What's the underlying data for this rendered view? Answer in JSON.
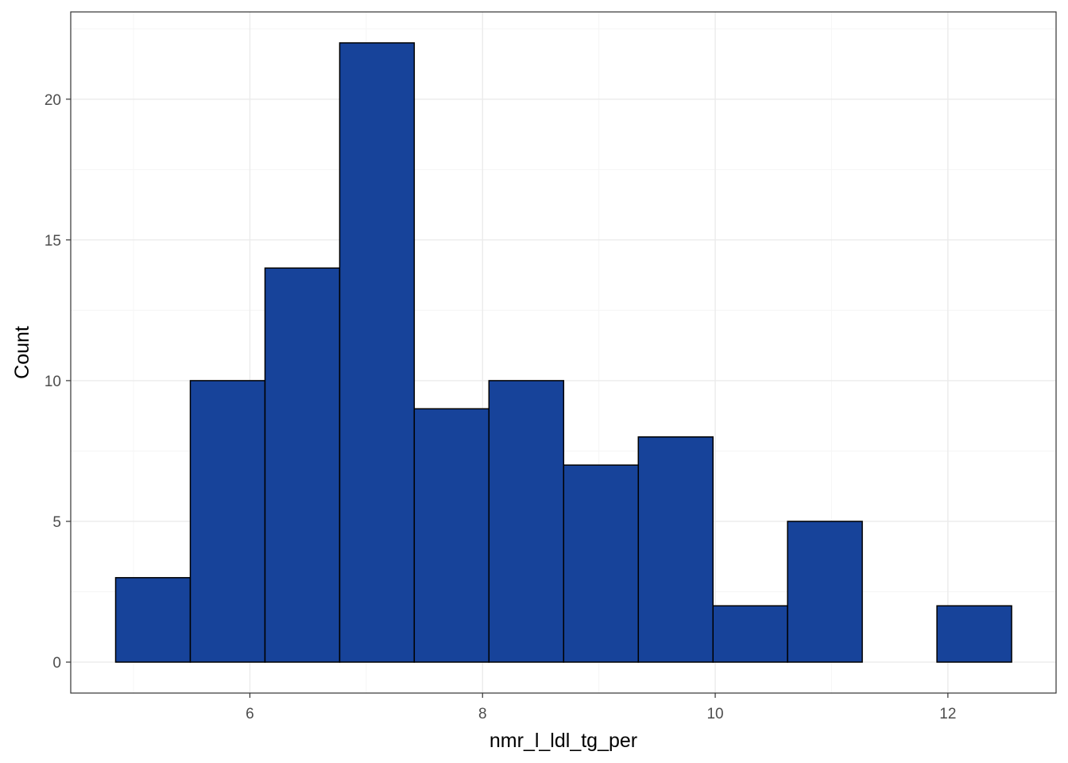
{
  "chart_data": {
    "type": "bar",
    "subtype": "histogram",
    "title": "",
    "xlabel": "nmr_l_ldl_tg_per",
    "ylabel": "Count",
    "bins": [
      {
        "x0": 4.846,
        "x1": 5.488,
        "count": 3
      },
      {
        "x0": 5.488,
        "x1": 6.13,
        "count": 10
      },
      {
        "x0": 6.13,
        "x1": 6.772,
        "count": 14
      },
      {
        "x0": 6.772,
        "x1": 7.413,
        "count": 22
      },
      {
        "x0": 7.413,
        "x1": 8.055,
        "count": 9
      },
      {
        "x0": 8.055,
        "x1": 8.697,
        "count": 10
      },
      {
        "x0": 8.697,
        "x1": 9.339,
        "count": 7
      },
      {
        "x0": 9.339,
        "x1": 9.981,
        "count": 8
      },
      {
        "x0": 9.981,
        "x1": 10.622,
        "count": 2
      },
      {
        "x0": 10.622,
        "x1": 11.264,
        "count": 5
      },
      {
        "x0": 11.264,
        "x1": 11.906,
        "count": 0
      },
      {
        "x0": 11.906,
        "x1": 12.548,
        "count": 2
      }
    ],
    "xlim": [
      4.46,
      12.93
    ],
    "ylim": [
      -1.1,
      23.1
    ],
    "x_ticks": [
      6,
      8,
      10,
      12
    ],
    "x_tick_labels": [
      "6",
      "8",
      "10",
      "12"
    ],
    "y_ticks": [
      0,
      5,
      10,
      15,
      20
    ],
    "y_tick_labels": [
      "0",
      "5",
      "10",
      "15",
      "20"
    ],
    "grid": true,
    "legend": "none",
    "colors": {
      "bar_fill": "#17439A",
      "bar_stroke": "#000000",
      "grid_major": "#EBEBEB",
      "grid_minor": "#F5F5F5",
      "panel_border": "#333333",
      "tick_text": "#4D4D4D"
    }
  }
}
